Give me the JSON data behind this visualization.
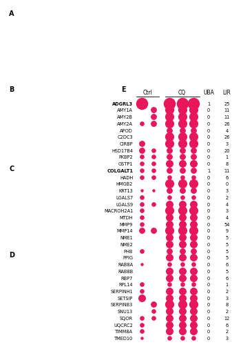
{
  "proteins": [
    "ADGRL3",
    "AMY1A",
    "AMY2B",
    "AMY2A",
    "APOD",
    "C2DC3",
    "CIRBP",
    "HSD17B4",
    "FKBP2",
    "GSTP1",
    "COLGALT1",
    "HADH",
    "HMGB2",
    "KRT13",
    "LGALS7",
    "LGALS9",
    "MACROH2A1",
    "MTDH",
    "MMP9",
    "MMP14",
    "NME1",
    "NME2",
    "PHB",
    "PPIG",
    "RAB8A",
    "RAB8B",
    "RBP7",
    "RPL14",
    "SERPINH1",
    "SETSIP",
    "SERPINB3",
    "SNU13",
    "SQOR",
    "UQCRC2",
    "TIMM8A",
    "TMED10"
  ],
  "bold_proteins": [
    "ADGRL3",
    "COLGALT1"
  ],
  "ctrl_sizes": [
    9,
    0,
    0,
    4,
    0,
    0,
    5,
    5,
    4,
    4,
    4,
    4,
    0,
    3,
    4,
    4,
    4,
    4,
    4,
    5,
    0,
    0,
    4,
    0,
    3,
    0,
    0,
    4,
    4,
    6,
    0,
    0,
    4,
    4,
    4,
    3
  ],
  "ctrl_sizes2": [
    0,
    5,
    5,
    5,
    0,
    0,
    0,
    4,
    4,
    4,
    4,
    4,
    0,
    3,
    0,
    4,
    0,
    0,
    0,
    5,
    0,
    0,
    0,
    0,
    0,
    0,
    0,
    0,
    0,
    0,
    5,
    4,
    4,
    0,
    0,
    0
  ],
  "cq_sizes1": [
    9,
    7,
    7,
    7,
    5,
    7,
    7,
    5,
    5,
    6,
    5,
    4,
    7,
    5,
    4,
    6,
    7,
    6,
    6,
    7,
    6,
    6,
    5,
    6,
    4,
    6,
    6,
    4,
    6,
    6,
    7,
    6,
    6,
    6,
    6,
    4
  ],
  "cq_sizes2": [
    9,
    7,
    7,
    7,
    5,
    7,
    7,
    5,
    5,
    6,
    5,
    4,
    7,
    5,
    4,
    6,
    7,
    6,
    6,
    7,
    6,
    6,
    5,
    6,
    4,
    6,
    6,
    4,
    6,
    6,
    7,
    6,
    6,
    6,
    6,
    4
  ],
  "cq_sizes3": [
    9,
    7,
    7,
    7,
    5,
    7,
    7,
    5,
    5,
    6,
    5,
    4,
    7,
    5,
    4,
    6,
    7,
    6,
    6,
    7,
    6,
    6,
    5,
    6,
    4,
    6,
    6,
    4,
    6,
    6,
    7,
    6,
    6,
    6,
    6,
    4
  ],
  "uba": [
    1,
    0,
    0,
    0,
    0,
    0,
    0,
    0,
    0,
    0,
    1,
    0,
    0,
    0,
    0,
    0,
    0,
    0,
    0,
    0,
    0,
    0,
    0,
    0,
    0,
    0,
    0,
    0,
    0,
    0,
    0,
    0,
    0,
    0,
    0,
    0
  ],
  "lir": [
    25,
    11,
    11,
    26,
    4,
    26,
    3,
    20,
    1,
    8,
    11,
    6,
    0,
    3,
    2,
    4,
    3,
    4,
    54,
    9,
    5,
    5,
    5,
    5,
    6,
    5,
    6,
    1,
    2,
    3,
    8,
    2,
    12,
    6,
    2,
    3
  ],
  "dot_color": "#E8165A",
  "bg_color": "#ffffff",
  "panel_e_label": "E",
  "ctrl_label": "Ctrl",
  "cq_label": "CQ",
  "uba_label": "UBA",
  "lir_label": "LIR",
  "panel_a_label": "A",
  "panel_b_label": "B",
  "panel_c_label": "C",
  "panel_d_label": "D"
}
